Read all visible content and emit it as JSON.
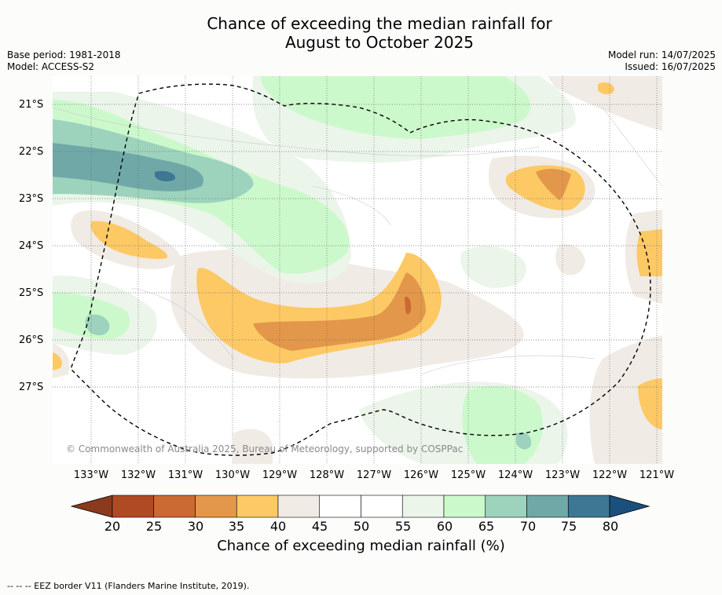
{
  "title_line1": "Chance of exceeding the median rainfall for",
  "title_line2": "August to October 2025",
  "base_period": "Base period: 1981-2018",
  "model": "Model: ACCESS-S2",
  "model_run": "Model run: 14/07/2025",
  "issued": "Issued: 16/07/2025",
  "copyright": "© Commonwealth of Australia 2025, Bureau of Meteorology, supported by COSPPac",
  "lat_labels": [
    "21°S",
    "22°S",
    "23°S",
    "24°S",
    "25°S",
    "26°S",
    "27°S"
  ],
  "lon_labels": [
    "133°W",
    "132°W",
    "131°W",
    "130°W",
    "129°W",
    "128°W",
    "127°W",
    "126°W",
    "125°W",
    "124°W",
    "123°W",
    "122°W",
    "121°W"
  ],
  "colorbar": {
    "ticks": [
      "20",
      "25",
      "30",
      "35",
      "40",
      "45",
      "50",
      "55",
      "60",
      "65",
      "70",
      "75",
      "80"
    ],
    "colors": [
      "#8c3a1e",
      "#b04a25",
      "#cb6a33",
      "#e3974a",
      "#fdc965",
      "#f1ebe5",
      "#ffffff",
      "#ffffff",
      "#ebf5ea",
      "#ccf9cc",
      "#9dd3bd",
      "#6fa8a6",
      "#3d7793",
      "#1b4f7d"
    ],
    "label": "Chance of exceeding median rainfall (%)"
  },
  "legend_note": "--  --  -- EEZ border V11 (Flanders Marine Institute, 2019)."
}
